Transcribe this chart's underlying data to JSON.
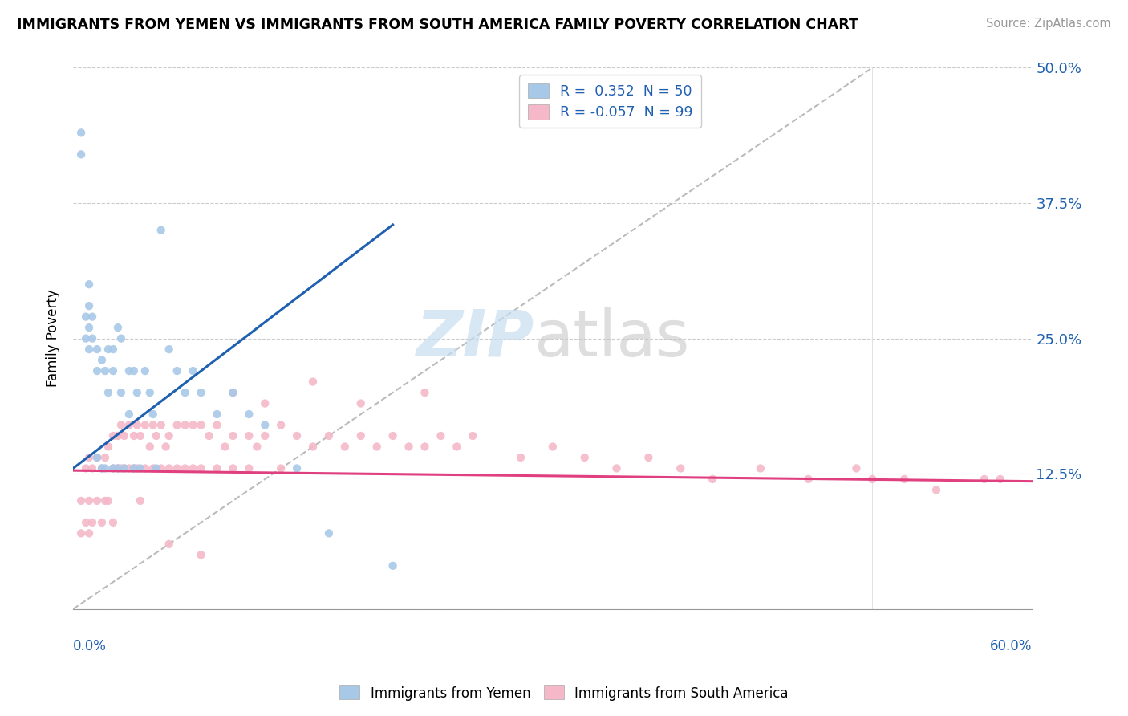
{
  "title": "IMMIGRANTS FROM YEMEN VS IMMIGRANTS FROM SOUTH AMERICA FAMILY POVERTY CORRELATION CHART",
  "source": "Source: ZipAtlas.com",
  "ylabel": "Family Poverty",
  "yticks": [
    0.0,
    0.125,
    0.25,
    0.375,
    0.5
  ],
  "ytick_labels": [
    "",
    "12.5%",
    "25.0%",
    "37.5%",
    "50.0%"
  ],
  "xlim": [
    0.0,
    0.6
  ],
  "ylim": [
    0.0,
    0.5
  ],
  "legend_r1": "R =  0.352  N = 50",
  "legend_r2": "R = -0.057  N = 99",
  "blue_color": "#a8c8e8",
  "pink_color": "#f4b8c8",
  "blue_line_color": "#2060b0",
  "pink_line_color": "#e04080",
  "ref_line_color": "#bbbbbb",
  "yemen_x": [
    0.005,
    0.005,
    0.008,
    0.008,
    0.01,
    0.01,
    0.01,
    0.01,
    0.012,
    0.012,
    0.015,
    0.015,
    0.015,
    0.018,
    0.018,
    0.02,
    0.02,
    0.022,
    0.022,
    0.025,
    0.025,
    0.025,
    0.028,
    0.028,
    0.03,
    0.03,
    0.032,
    0.035,
    0.035,
    0.038,
    0.038,
    0.04,
    0.042,
    0.045,
    0.048,
    0.05,
    0.052,
    0.055,
    0.06,
    0.065,
    0.07,
    0.075,
    0.08,
    0.09,
    0.1,
    0.11,
    0.12,
    0.14,
    0.16,
    0.2
  ],
  "yemen_y": [
    0.44,
    0.42,
    0.27,
    0.25,
    0.3,
    0.28,
    0.26,
    0.24,
    0.27,
    0.25,
    0.24,
    0.22,
    0.14,
    0.23,
    0.13,
    0.22,
    0.13,
    0.24,
    0.2,
    0.24,
    0.22,
    0.13,
    0.26,
    0.13,
    0.25,
    0.2,
    0.13,
    0.22,
    0.18,
    0.22,
    0.13,
    0.2,
    0.13,
    0.22,
    0.2,
    0.18,
    0.13,
    0.35,
    0.24,
    0.22,
    0.2,
    0.22,
    0.2,
    0.18,
    0.2,
    0.18,
    0.17,
    0.13,
    0.07,
    0.04
  ],
  "sa_x": [
    0.005,
    0.005,
    0.008,
    0.008,
    0.01,
    0.01,
    0.01,
    0.012,
    0.012,
    0.015,
    0.015,
    0.018,
    0.018,
    0.02,
    0.02,
    0.022,
    0.022,
    0.025,
    0.025,
    0.025,
    0.028,
    0.028,
    0.03,
    0.03,
    0.032,
    0.032,
    0.035,
    0.035,
    0.038,
    0.038,
    0.04,
    0.04,
    0.042,
    0.042,
    0.045,
    0.045,
    0.048,
    0.05,
    0.05,
    0.052,
    0.055,
    0.055,
    0.058,
    0.06,
    0.06,
    0.065,
    0.065,
    0.07,
    0.07,
    0.075,
    0.075,
    0.08,
    0.08,
    0.085,
    0.09,
    0.09,
    0.095,
    0.1,
    0.1,
    0.11,
    0.11,
    0.115,
    0.12,
    0.13,
    0.13,
    0.14,
    0.15,
    0.16,
    0.17,
    0.18,
    0.19,
    0.2,
    0.21,
    0.22,
    0.23,
    0.24,
    0.25,
    0.28,
    0.3,
    0.32,
    0.34,
    0.36,
    0.38,
    0.4,
    0.43,
    0.46,
    0.49,
    0.52,
    0.54,
    0.57,
    0.1,
    0.12,
    0.15,
    0.18,
    0.22,
    0.06,
    0.08,
    0.5,
    0.58
  ],
  "sa_y": [
    0.1,
    0.07,
    0.13,
    0.08,
    0.14,
    0.1,
    0.07,
    0.13,
    0.08,
    0.14,
    0.1,
    0.13,
    0.08,
    0.14,
    0.1,
    0.15,
    0.1,
    0.16,
    0.13,
    0.08,
    0.16,
    0.13,
    0.17,
    0.13,
    0.16,
    0.13,
    0.17,
    0.13,
    0.16,
    0.13,
    0.17,
    0.13,
    0.16,
    0.1,
    0.17,
    0.13,
    0.15,
    0.17,
    0.13,
    0.16,
    0.17,
    0.13,
    0.15,
    0.16,
    0.13,
    0.17,
    0.13,
    0.17,
    0.13,
    0.17,
    0.13,
    0.17,
    0.13,
    0.16,
    0.17,
    0.13,
    0.15,
    0.16,
    0.13,
    0.16,
    0.13,
    0.15,
    0.16,
    0.17,
    0.13,
    0.16,
    0.15,
    0.16,
    0.15,
    0.16,
    0.15,
    0.16,
    0.15,
    0.15,
    0.16,
    0.15,
    0.16,
    0.14,
    0.15,
    0.14,
    0.13,
    0.14,
    0.13,
    0.12,
    0.13,
    0.12,
    0.13,
    0.12,
    0.11,
    0.12,
    0.2,
    0.19,
    0.21,
    0.19,
    0.2,
    0.06,
    0.05,
    0.12,
    0.12
  ],
  "blue_trendline_x": [
    0.0,
    0.2
  ],
  "blue_trendline_y": [
    0.13,
    0.355
  ],
  "pink_trendline_x": [
    0.0,
    0.6
  ],
  "pink_trendline_y": [
    0.128,
    0.118
  ]
}
